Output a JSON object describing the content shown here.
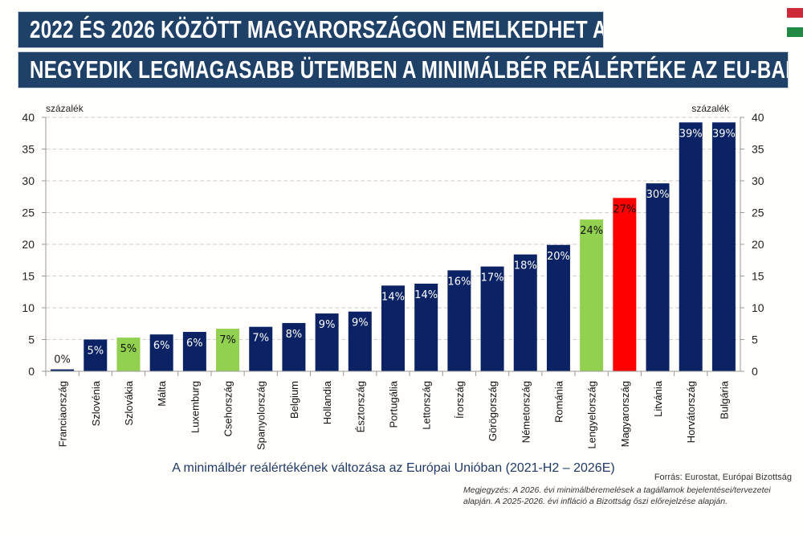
{
  "header": {
    "title_line1": "2022 ÉS 2026 KÖZÖTT MAGYARORSZÁGON EMELKEDHET A",
    "title_line2": "NEGYEDIK LEGMAGASABB ÜTEMBEN A MINIMÁLBÉR REÁLÉRTÉKE AZ EU-BAN",
    "flag_colors": [
      "#ce2939",
      "#ffffff",
      "#1e8a44"
    ]
  },
  "chart_data": {
    "type": "bar",
    "title": "A minimálbér reálértékének változása az Európai Unióban (2021-H2 – 2026E)",
    "ylabel_left": "százalék",
    "ylabel_right": "százalék",
    "ylim": [
      0,
      40
    ],
    "yticks": [
      0,
      5,
      10,
      15,
      20,
      25,
      30,
      35,
      40
    ],
    "grid": true,
    "categories": [
      "Franciaország",
      "Szlovénia",
      "Szlovákia",
      "Málta",
      "Luxemburg",
      "Csehország",
      "Spanyolország",
      "Belgium",
      "Hollandia",
      "Észtország",
      "Portugália",
      "Lettország",
      "Írország",
      "Görögország",
      "Németország",
      "Románia",
      "Lengyelország",
      "Magyarország",
      "Litvánia",
      "Horvátország",
      "Bulgária"
    ],
    "values": [
      0.3,
      5.0,
      5.3,
      5.8,
      6.2,
      6.7,
      7.0,
      7.6,
      9.1,
      9.4,
      13.5,
      13.8,
      15.9,
      16.5,
      18.4,
      19.9,
      23.9,
      27.3,
      29.6,
      39.2,
      39.2
    ],
    "data_labels": [
      "0%",
      "5%",
      "5%",
      "6%",
      "6%",
      "7%",
      "7%",
      "8%",
      "9%",
      "9%",
      "14%",
      "14%",
      "16%",
      "17%",
      "18%",
      "20%",
      "24%",
      "27%",
      "30%",
      "39%",
      "39%"
    ],
    "colors": {
      "default": "#0b2264",
      "highlight_green": "#92d050",
      "highlight_red": "#ff0000"
    },
    "bar_color_keys": [
      "default",
      "default",
      "highlight_green",
      "default",
      "default",
      "highlight_green",
      "default",
      "default",
      "default",
      "default",
      "default",
      "default",
      "default",
      "default",
      "default",
      "default",
      "highlight_green",
      "highlight_red",
      "default",
      "default",
      "default"
    ]
  },
  "footer": {
    "source": "Forrás: Eurostat, Európai Bizottság",
    "note_line1": "Megjegyzés: A 2026. évi minimálbéremelések a tagállamok bejelentései/tervezetei",
    "note_line2": "alapján. A 2025-2026. évi infláció a Bizottság őszi előrejelzése alapján."
  }
}
